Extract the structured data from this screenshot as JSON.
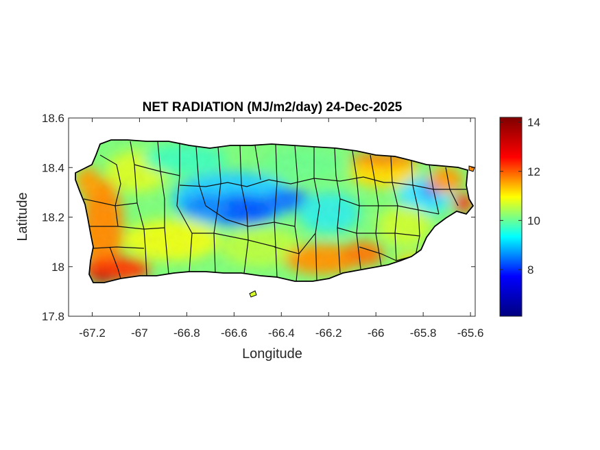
{
  "map": {
    "title": "NET RADIATION (MJ/m2/day) 24-Dec-2025",
    "xlabel": "Longitude",
    "ylabel": "Latitude",
    "xlim": [
      -67.3,
      -65.58
    ],
    "ylim": [
      17.8,
      18.6
    ],
    "x_ticks": [
      -67.2,
      -67,
      -66.8,
      -66.6,
      -66.4,
      -66.2,
      -66,
      -65.8,
      -65.6
    ],
    "x_tick_labels": [
      "-67.2",
      "-67",
      "-66.8",
      "-66.6",
      "-66.4",
      "-66.2",
      "-66",
      "-65.8",
      "-65.6"
    ],
    "y_ticks": [
      17.8,
      18,
      18.2,
      18.4,
      18.6
    ],
    "y_tick_labels": [
      "17.8",
      "18",
      "18.2",
      "18.4",
      "18.6"
    ],
    "region": "Puerto Rico",
    "boundaries": "municipality outlines",
    "colormap": "jet",
    "field_description": "Net radiation: lowest in the central interior mountains (~7-8), highest along the southwest, south and northeast coasts (~13-14)"
  },
  "colorbar": {
    "range": [
      6.1,
      14.2
    ],
    "ticks": [
      8,
      10,
      12,
      14
    ],
    "tick_labels": [
      "8",
      "10",
      "12",
      "14"
    ],
    "colors": [
      "#00007f",
      "#0000ff",
      "#00ffff",
      "#ffff00",
      "#ff0000",
      "#7f0000"
    ]
  }
}
